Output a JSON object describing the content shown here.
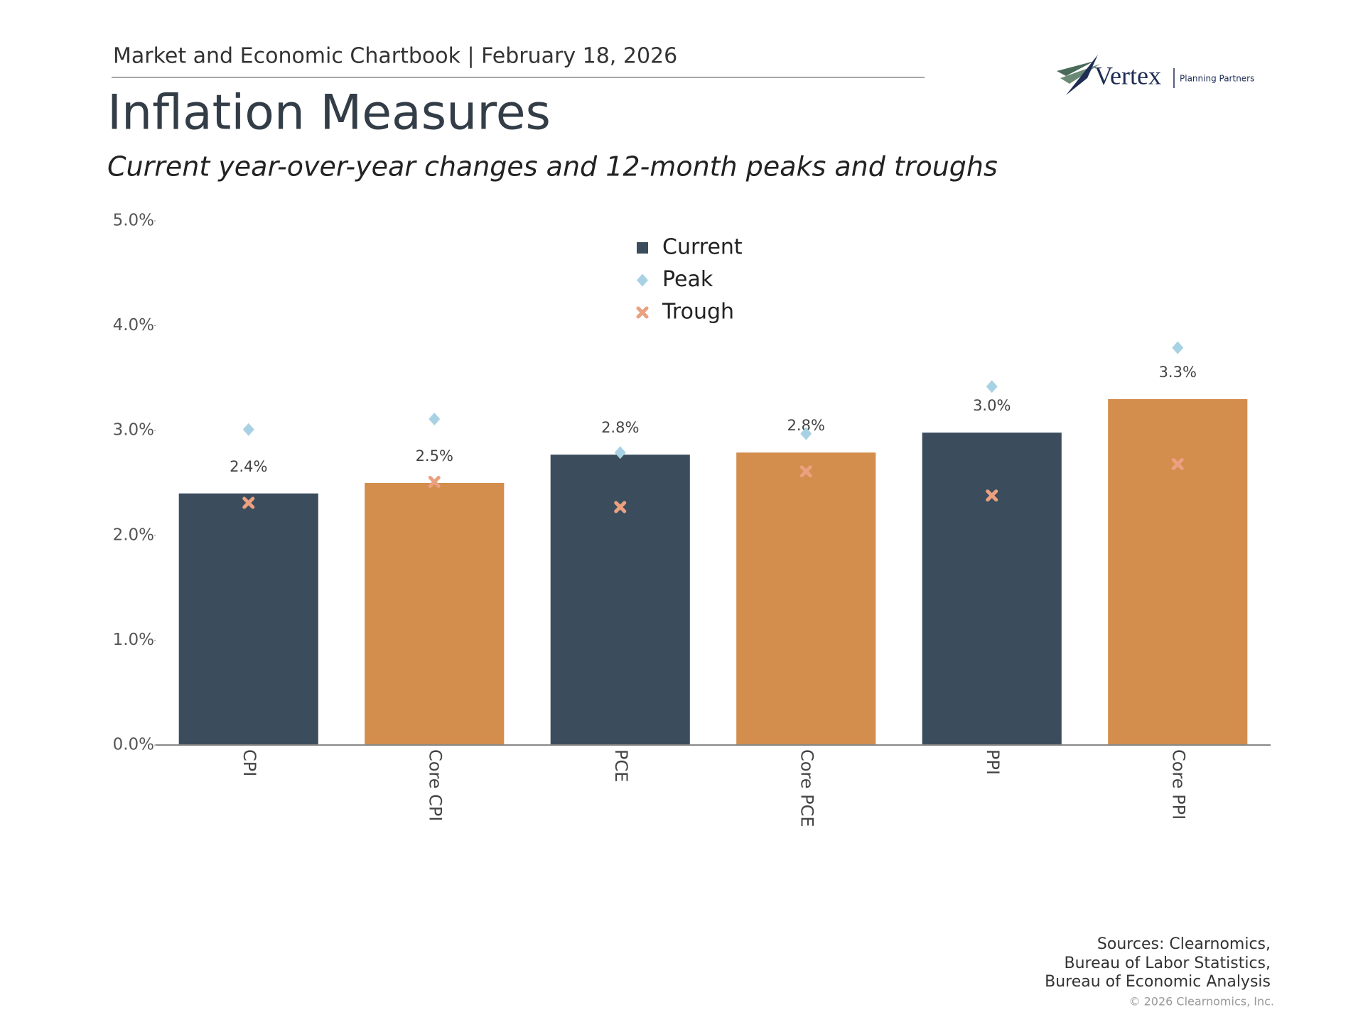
{
  "header": "Market and Economic Chartbook | February 18, 2026",
  "logo": {
    "name": "Vertex",
    "tagline": "Planning Partners"
  },
  "chart_data": {
    "type": "bar",
    "title": "Inflation Measures",
    "subtitle": "Current year-over-year changes and 12-month peaks and troughs",
    "categories": [
      "CPI",
      "Core CPI",
      "PCE",
      "Core PCE",
      "PPI",
      "Core PPI"
    ],
    "series": [
      {
        "name": "Current",
        "color": "#3b4d5c",
        "bar_colors": [
          "#3b4d5c",
          "#d38d4c",
          "#3b4d5c",
          "#d38d4c",
          "#3b4d5c",
          "#d38d4c"
        ],
        "values": [
          2.4,
          2.5,
          2.77,
          2.79,
          2.98,
          3.3
        ],
        "value_labels": [
          "2.4%",
          "2.5%",
          "2.8%",
          "2.8%",
          "3.0%",
          "3.3%"
        ]
      },
      {
        "name": "Peak",
        "color": "#a8d2e3",
        "marker": "diamond",
        "values": [
          3.01,
          3.11,
          2.79,
          2.97,
          3.42,
          3.79
        ]
      },
      {
        "name": "Trough",
        "color": "#eba07f",
        "marker": "x",
        "values": [
          2.31,
          2.51,
          2.27,
          2.61,
          2.38,
          2.68
        ]
      }
    ],
    "ylim": [
      0,
      5
    ],
    "yticks": [
      {
        "value": 0,
        "label": "0.0%"
      },
      {
        "value": 1,
        "label": "1.0%"
      },
      {
        "value": 2,
        "label": "2.0%"
      },
      {
        "value": 3,
        "label": "3.0%"
      },
      {
        "value": 4,
        "label": "4.0%"
      },
      {
        "value": 5,
        "label": "5.0%"
      }
    ],
    "grid": false,
    "legend": "top-center"
  },
  "sources": [
    "Sources: Clearnomics,",
    "Bureau of Labor Statistics,",
    "Bureau of Economic Analysis"
  ],
  "copyright": "© 2026 Clearnomics, Inc."
}
